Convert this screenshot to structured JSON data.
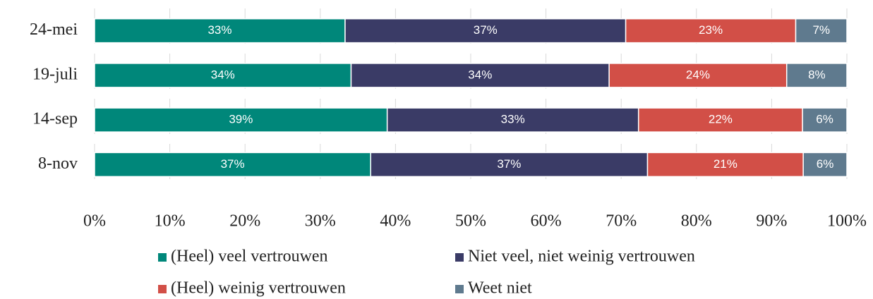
{
  "chart_data": {
    "type": "stacked-bar-horizontal",
    "categories": [
      "24-mei",
      "19-juli",
      "14-sep",
      "8-nov"
    ],
    "series": [
      {
        "name": "(Heel) veel vertrouwen",
        "color": "#00877a",
        "values": [
          33.3,
          34.1,
          38.9,
          36.7
        ],
        "value_labels": [
          "33%",
          "34%",
          "39%",
          "37%"
        ]
      },
      {
        "name": "Niet veel, niet weinig vertrouwen",
        "color": "#3a3b66",
        "values": [
          37.3,
          34.3,
          33.4,
          36.8
        ],
        "value_labels": [
          "37%",
          "34%",
          "33%",
          "37%"
        ]
      },
      {
        "name": "(Heel) weinig vertrouwen",
        "color": "#d24f47",
        "values": [
          22.6,
          23.6,
          21.8,
          20.7
        ],
        "value_labels": [
          "23%",
          "24%",
          "22%",
          "21%"
        ]
      },
      {
        "name": "Weet niet",
        "color": "#5f7a8e",
        "values": [
          6.8,
          8.0,
          5.9,
          5.8
        ],
        "value_labels": [
          "7%",
          "8%",
          "6%",
          "6%"
        ]
      }
    ],
    "xlim": [
      0,
      100
    ],
    "xticks": [
      {
        "value": 0,
        "label": "0%"
      },
      {
        "value": 10,
        "label": "10%"
      },
      {
        "value": 20,
        "label": "20%"
      },
      {
        "value": 30,
        "label": "30%"
      },
      {
        "value": 40,
        "label": "40%"
      },
      {
        "value": 50,
        "label": "50%"
      },
      {
        "value": 60,
        "label": "60%"
      },
      {
        "value": 70,
        "label": "70%"
      },
      {
        "value": 80,
        "label": "80%"
      },
      {
        "value": 90,
        "label": "90%"
      },
      {
        "value": 100,
        "label": "100%"
      }
    ],
    "grid": true,
    "legend": "bottom"
  }
}
